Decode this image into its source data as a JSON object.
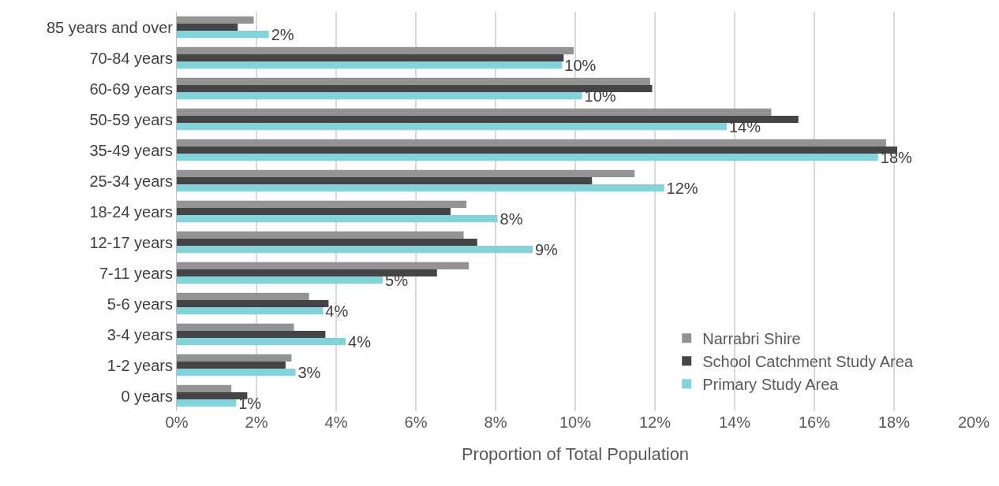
{
  "chart_data": {
    "type": "bar",
    "orientation": "horizontal",
    "xlabel": "Proportion of Total Population",
    "categories": [
      "85 years and over",
      "70-84 years",
      "60-69 years",
      "50-59 years",
      "35-49 years",
      "25-34 years",
      "18-24 years",
      "12-17 years",
      "7-11 years",
      "5-6 years",
      "3-4 years",
      "1-2 years",
      "0 years"
    ],
    "series": [
      {
        "name": "Narrabri Shire",
        "color": "#939393",
        "values": [
          1.93,
          9.96,
          11.88,
          14.92,
          17.8,
          11.49,
          7.27,
          7.2,
          7.33,
          3.32,
          2.94,
          2.88,
          1.37
        ]
      },
      {
        "name": "School Catchment Study Area",
        "color": "#454547",
        "values": [
          1.53,
          9.71,
          11.93,
          15.6,
          18.08,
          10.42,
          6.87,
          7.54,
          6.53,
          3.81,
          3.73,
          2.73,
          1.77
        ]
      },
      {
        "name": "Primary Study Area",
        "color": "#84d2da",
        "values": [
          2.31,
          9.67,
          10.17,
          13.8,
          17.6,
          12.23,
          8.05,
          8.93,
          5.17,
          3.67,
          4.24,
          2.98,
          1.49
        ],
        "value_labels": [
          "2%",
          "10%",
          "10%",
          "14%",
          "18%",
          "12%",
          "8%",
          "9%",
          "5%",
          "4%",
          "4%",
          "3%",
          "1%"
        ]
      }
    ],
    "xlim": [
      0,
      20
    ],
    "xticks": [
      {
        "value": 0,
        "label": "0%"
      },
      {
        "value": 2,
        "label": "2%"
      },
      {
        "value": 4,
        "label": "4%"
      },
      {
        "value": 6,
        "label": "6%"
      },
      {
        "value": 8,
        "label": "8%"
      },
      {
        "value": 10,
        "label": "10%"
      },
      {
        "value": 12,
        "label": "12%"
      },
      {
        "value": 14,
        "label": "14%"
      },
      {
        "value": 16,
        "label": "16%"
      },
      {
        "value": 18,
        "label": "18%"
      },
      {
        "value": 20,
        "label": "20%"
      }
    ],
    "grid": "x",
    "legend": "bottom right"
  }
}
